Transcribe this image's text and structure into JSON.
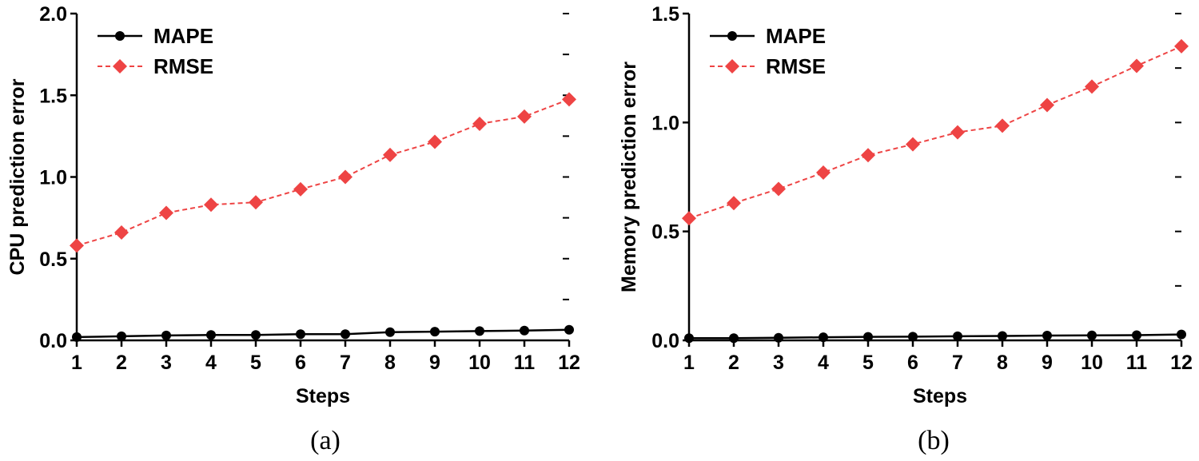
{
  "chart_data": [
    {
      "id": "a",
      "type": "line",
      "caption": "(a)",
      "xlabel": "Steps",
      "ylabel": "CPU prediction error",
      "x": [
        1,
        2,
        3,
        4,
        5,
        6,
        7,
        8,
        9,
        10,
        11,
        12
      ],
      "ylim": [
        0,
        2.0
      ],
      "yticks": [
        "0.0",
        "0.5",
        "1.0",
        "1.5",
        "2.0"
      ],
      "series": [
        {
          "name": "MAPE",
          "color": "#000000",
          "style": "solid",
          "marker": "circle",
          "values": [
            0.02,
            0.025,
            0.03,
            0.033,
            0.033,
            0.038,
            0.038,
            0.05,
            0.053,
            0.057,
            0.06,
            0.065
          ]
        },
        {
          "name": "RMSE",
          "color": "#ee4444",
          "style": "dashed",
          "marker": "diamond",
          "values": [
            0.58,
            0.66,
            0.78,
            0.83,
            0.845,
            0.925,
            1.0,
            1.135,
            1.215,
            1.325,
            1.37,
            1.475
          ]
        }
      ]
    },
    {
      "id": "b",
      "type": "line",
      "caption": "(b)",
      "xlabel": "Steps",
      "ylabel": "Memory prediction error",
      "x": [
        1,
        2,
        3,
        4,
        5,
        6,
        7,
        8,
        9,
        10,
        11,
        12
      ],
      "ylim": [
        0,
        1.5
      ],
      "yticks": [
        "0.0",
        "0.5",
        "1.0",
        "1.5"
      ],
      "series": [
        {
          "name": "MAPE",
          "color": "#000000",
          "style": "solid",
          "marker": "circle",
          "values": [
            0.01,
            0.01,
            0.012,
            0.014,
            0.016,
            0.017,
            0.019,
            0.02,
            0.022,
            0.023,
            0.024,
            0.027
          ]
        },
        {
          "name": "RMSE",
          "color": "#ee4444",
          "style": "dashed",
          "marker": "diamond",
          "values": [
            0.56,
            0.63,
            0.695,
            0.77,
            0.85,
            0.9,
            0.955,
            0.985,
            1.08,
            1.165,
            1.26,
            1.35
          ]
        }
      ]
    }
  ]
}
